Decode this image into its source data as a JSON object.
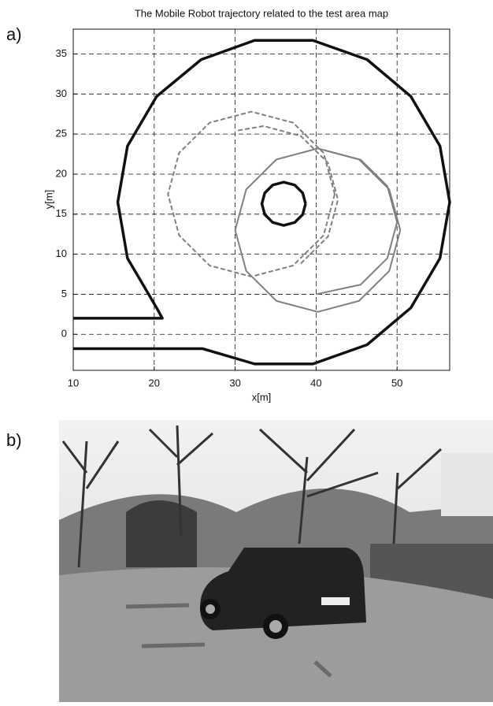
{
  "figure_labels": [
    "a)",
    "b)"
  ],
  "chart_data": {
    "type": "line",
    "title": "The Mobile Robot trajectory related to the test area map",
    "x_label": "x[m]",
    "y_label": "y[m]",
    "xlim": [
      10,
      56.5
    ],
    "ylim": [
      -4.5,
      38.1
    ],
    "xticks": [
      10,
      20,
      30,
      40,
      50
    ],
    "yticks": [
      0,
      5,
      10,
      15,
      20,
      25,
      30,
      35
    ],
    "grid": true,
    "series": [
      {
        "color": "#111111",
        "width": 3.5,
        "dashed": false,
        "x": [
          10,
          26,
          32.4,
          39.6,
          46.3,
          51.7,
          55.3,
          56.5,
          55.3,
          51.7,
          46.3,
          39.6,
          32.4,
          25.8,
          20.3,
          16.7,
          15.5,
          16.7,
          20.3,
          21,
          10
        ],
        "y": [
          -1.8,
          -1.8,
          -3.7,
          -3.7,
          -1.3,
          3.3,
          9.5,
          16.5,
          23.5,
          29.7,
          34.3,
          36.7,
          36.7,
          34.3,
          29.7,
          23.5,
          16.5,
          9.5,
          3.3,
          2,
          2
        ]
      },
      {
        "color": "#111111",
        "width": 3.5,
        "dashed": false,
        "x": [
          38.7,
          38.34,
          37.35,
          36,
          34.65,
          33.66,
          33.3,
          33.66,
          34.65,
          36,
          37.35,
          38.34,
          38.7
        ],
        "y": [
          16.3,
          17.65,
          18.64,
          19,
          18.64,
          17.65,
          16.3,
          14.95,
          13.96,
          13.6,
          13.96,
          14.95,
          16.3
        ]
      },
      {
        "color": "#808080",
        "width": 2,
        "dashed": true,
        "x": [
          42.3,
          40.92,
          37.15,
          32,
          26.85,
          23.08,
          21.7,
          23.08,
          26.85,
          32,
          37.15,
          40.92,
          42.3
        ],
        "y": [
          17.5,
          22.65,
          26.42,
          27.8,
          26.42,
          22.65,
          17.5,
          12.35,
          8.58,
          7.2,
          8.58,
          12.35,
          17.5
        ]
      },
      {
        "color": "#808080",
        "width": 2,
        "dashed": true,
        "x": [
          30.35,
          33.5,
          38.1,
          41.47,
          42.7,
          41.47,
          38.1
        ],
        "y": [
          25.45,
          26,
          24.77,
          21.4,
          16.8,
          12.2,
          8.83
        ]
      },
      {
        "color": "#808080",
        "width": 2,
        "dashed": false,
        "x": [
          50.4,
          49.03,
          45.3,
          40.2,
          35.1,
          31.37,
          30,
          31.37,
          35.1,
          40.2,
          45.3,
          49.03,
          50.4
        ],
        "y": [
          13,
          18.1,
          21.83,
          23.2,
          21.83,
          18.1,
          13,
          7.9,
          4.17,
          2.8,
          4.17,
          7.9,
          13
        ]
      },
      {
        "color": "#808080",
        "width": 2,
        "dashed": false,
        "x": [
          41,
          45.5,
          48.8,
          50,
          48.8,
          45.5,
          40
        ],
        "y": [
          23,
          21.8,
          18.5,
          14,
          9.5,
          6.2,
          5
        ]
      }
    ]
  }
}
